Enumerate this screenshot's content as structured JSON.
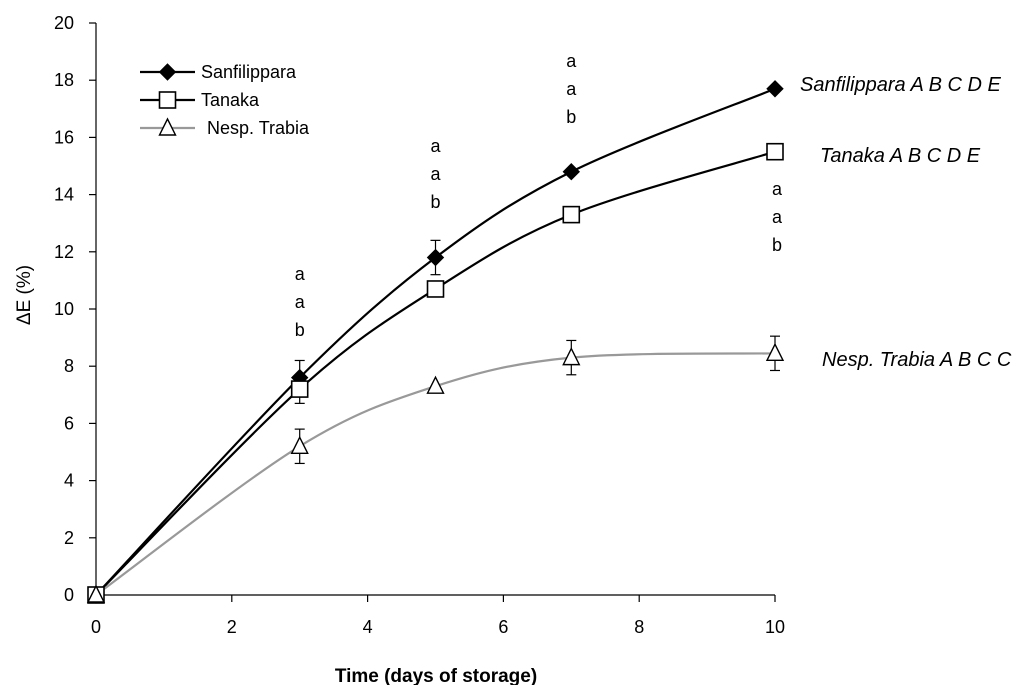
{
  "chart_data": {
    "type": "line",
    "title": "",
    "xlabel": "Time (days of storage)",
    "ylabel": "ΔE (%)",
    "xlim": [
      0,
      10
    ],
    "ylim": [
      0,
      20
    ],
    "x_ticks": [
      0,
      2,
      4,
      6,
      8,
      10
    ],
    "y_ticks": [
      0,
      2,
      4,
      6,
      8,
      10,
      12,
      14,
      16,
      18,
      20
    ],
    "legend": "top-left",
    "grid": false,
    "series": [
      {
        "name": "Sanfilippara",
        "marker": "filled-diamond",
        "color": "#000000",
        "x": [
          0,
          3,
          5,
          7,
          10
        ],
        "y": [
          0,
          7.6,
          11.8,
          14.8,
          17.7
        ],
        "err": [
          0,
          0.6,
          0.6,
          0,
          0
        ],
        "label": "Sanfilippara A B C D E"
      },
      {
        "name": "Tanaka",
        "marker": "open-square",
        "color": "#000000",
        "x": [
          0,
          3,
          5,
          7,
          10
        ],
        "y": [
          0,
          7.2,
          10.7,
          13.3,
          15.5
        ],
        "err": [
          0,
          0.5,
          0,
          0,
          0
        ],
        "label": "Tanaka A B C D E"
      },
      {
        "name": "Nesp. Trabia",
        "marker": "open-triangle",
        "color": "#999999",
        "x": [
          0,
          3,
          5,
          7,
          10
        ],
        "y": [
          0,
          5.2,
          7.3,
          8.3,
          8.45
        ],
        "err": [
          0,
          0.6,
          0,
          0.6,
          0.6
        ],
        "label": "Nesp. Trabia A B C C"
      }
    ],
    "letter_groups": [
      {
        "x": 3,
        "letters": [
          "a",
          "a",
          "b"
        ]
      },
      {
        "x": 5,
        "letters": [
          "a",
          "a",
          "b"
        ]
      },
      {
        "x": 7,
        "letters": [
          "a",
          "a",
          "b"
        ]
      },
      {
        "x": 10,
        "letters": [
          "a",
          "a",
          "b"
        ]
      }
    ]
  }
}
